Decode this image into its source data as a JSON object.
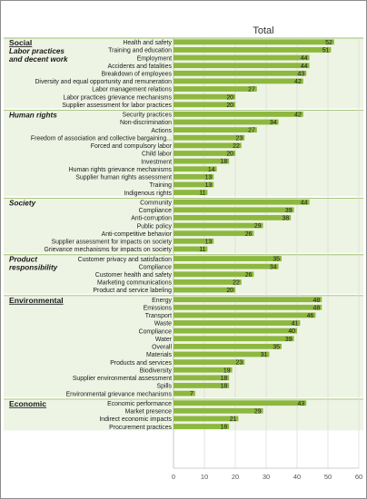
{
  "chart_data": {
    "type": "bar",
    "orientation": "horizontal",
    "title": "Total",
    "xlim": [
      0,
      60
    ],
    "xticks": [
      0,
      10,
      20,
      30,
      40,
      50,
      60
    ],
    "grid": true,
    "bar_color": "#8db83f",
    "group_bg_color": "#eef4e4",
    "divider_color": "#9fbf72",
    "sections": [
      {
        "name": "Social",
        "underline": true,
        "groups": [
          {
            "name": "Labor practices and decent work",
            "name_lines": [
              "Labor practices",
              "and decent work"
            ],
            "items": [
              {
                "label": "Health and safety",
                "value": 52
              },
              {
                "label": "Training and education",
                "value": 51
              },
              {
                "label": "Employment",
                "value": 44
              },
              {
                "label": "Accidents and fatalities",
                "value": 44
              },
              {
                "label": "Breakdown of employees",
                "value": 43
              },
              {
                "label": "Diversity and equal opportunity and remuneration",
                "value": 42
              },
              {
                "label": "Labor management relations",
                "value": 27
              },
              {
                "label": "Labor practices grievance mechanisms",
                "value": 20
              },
              {
                "label": "Supplier assessment for labor practices",
                "value": 20
              }
            ]
          },
          {
            "name": "Human rights",
            "name_lines": [
              "Human rights"
            ],
            "items": [
              {
                "label": "Security practices",
                "value": 42
              },
              {
                "label": "Non-discrimination",
                "value": 34
              },
              {
                "label": "Actions",
                "value": 27
              },
              {
                "label": "Freedom of association and collective bargaining...",
                "value": 23
              },
              {
                "label": "Forced and compulsory labor",
                "value": 22
              },
              {
                "label": "Child labor",
                "value": 20
              },
              {
                "label": "Investment",
                "value": 18
              },
              {
                "label": "Human rights grievance mechanisms",
                "value": 14
              },
              {
                "label": "Supplier human rights assessment",
                "value": 13
              },
              {
                "label": "Training",
                "value": 13
              },
              {
                "label": "Indigenous rights",
                "value": 11
              }
            ]
          },
          {
            "name": "Society",
            "name_lines": [
              "Society"
            ],
            "items": [
              {
                "label": "Community",
                "value": 44
              },
              {
                "label": "Compliance",
                "value": 39
              },
              {
                "label": "Anti-corruption",
                "value": 38
              },
              {
                "label": "Public policy",
                "value": 29
              },
              {
                "label": "Anti-competitive behavior",
                "value": 26
              },
              {
                "label": "Supplier assessment for impacts on society",
                "value": 13
              },
              {
                "label": "Grievance mechanisms for impacts on society",
                "value": 11
              }
            ]
          },
          {
            "name": "Product responsibility",
            "name_lines": [
              "Product",
              "responsibility"
            ],
            "items": [
              {
                "label": "Customer privacy and satisfaction",
                "value": 35
              },
              {
                "label": "Compliance",
                "value": 34
              },
              {
                "label": "Customer health and safety",
                "value": 26
              },
              {
                "label": "Marketing communications",
                "value": 22
              },
              {
                "label": "Product and service labeling",
                "value": 20
              }
            ]
          }
        ]
      },
      {
        "name": "Environmental",
        "underline": true,
        "groups": [
          {
            "name": "",
            "name_lines": [],
            "items": [
              {
                "label": "Energy",
                "value": 48
              },
              {
                "label": "Emissions",
                "value": 48
              },
              {
                "label": "Transport",
                "value": 46
              },
              {
                "label": "Waste",
                "value": 41
              },
              {
                "label": "Compliance",
                "value": 40
              },
              {
                "label": "Water",
                "value": 39
              },
              {
                "label": "Overall",
                "value": 35
              },
              {
                "label": "Materials",
                "value": 31
              },
              {
                "label": "Products and services",
                "value": 23
              },
              {
                "label": "Biodiversity",
                "value": 19
              },
              {
                "label": "Supplier environmental assessment",
                "value": 18
              },
              {
                "label": "Spills",
                "value": 18
              },
              {
                "label": "Environmental grievance mechanisms",
                "value": 7
              }
            ]
          }
        ]
      },
      {
        "name": "Economic",
        "underline": true,
        "groups": [
          {
            "name": "",
            "name_lines": [],
            "items": [
              {
                "label": "Economic performance",
                "value": 43
              },
              {
                "label": "Market presence",
                "value": 29
              },
              {
                "label": "Indirect economic impacts",
                "value": 21
              },
              {
                "label": "Procurement practices",
                "value": 18
              }
            ]
          }
        ]
      }
    ]
  }
}
